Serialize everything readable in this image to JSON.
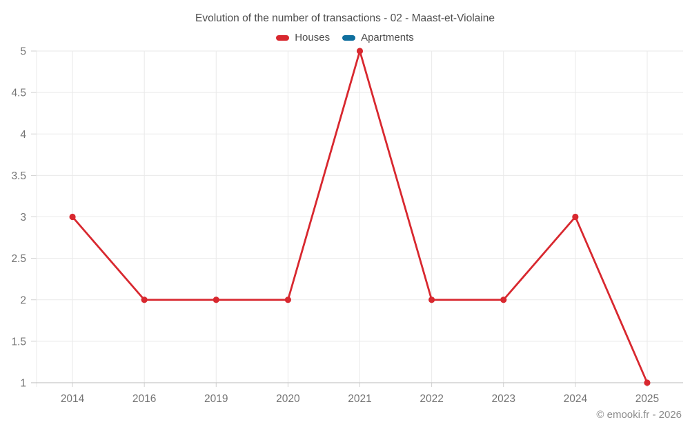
{
  "footer": "© emooki.fr - 2026",
  "chart_data": {
    "type": "line",
    "title": "Evolution of the number of transactions - 02 - Maast-et-Violaine",
    "categories": [
      "2014",
      "2016",
      "2019",
      "2020",
      "2021",
      "2022",
      "2023",
      "2024",
      "2025"
    ],
    "series": [
      {
        "name": "Houses",
        "color": "#d8282f",
        "values": [
          3,
          2,
          2,
          2,
          5,
          2,
          2,
          3,
          1
        ]
      },
      {
        "name": "Apartments",
        "color": "#0f6f9e",
        "values": []
      }
    ],
    "xlabel": "",
    "ylabel": "",
    "ylim": [
      1,
      5
    ],
    "y_ticks": [
      1,
      1.5,
      2,
      2.5,
      3,
      3.5,
      4,
      4.5,
      5
    ],
    "grid": true,
    "legend_position": "top",
    "colors": {
      "grid_line": "#e9e9e9",
      "axis_line": "#c6c6c6",
      "tick_mark": "#d0d0d0",
      "tick_label": "#757575",
      "title_text": "#4d4d4d",
      "footer_text": "#8c8c8c"
    }
  }
}
